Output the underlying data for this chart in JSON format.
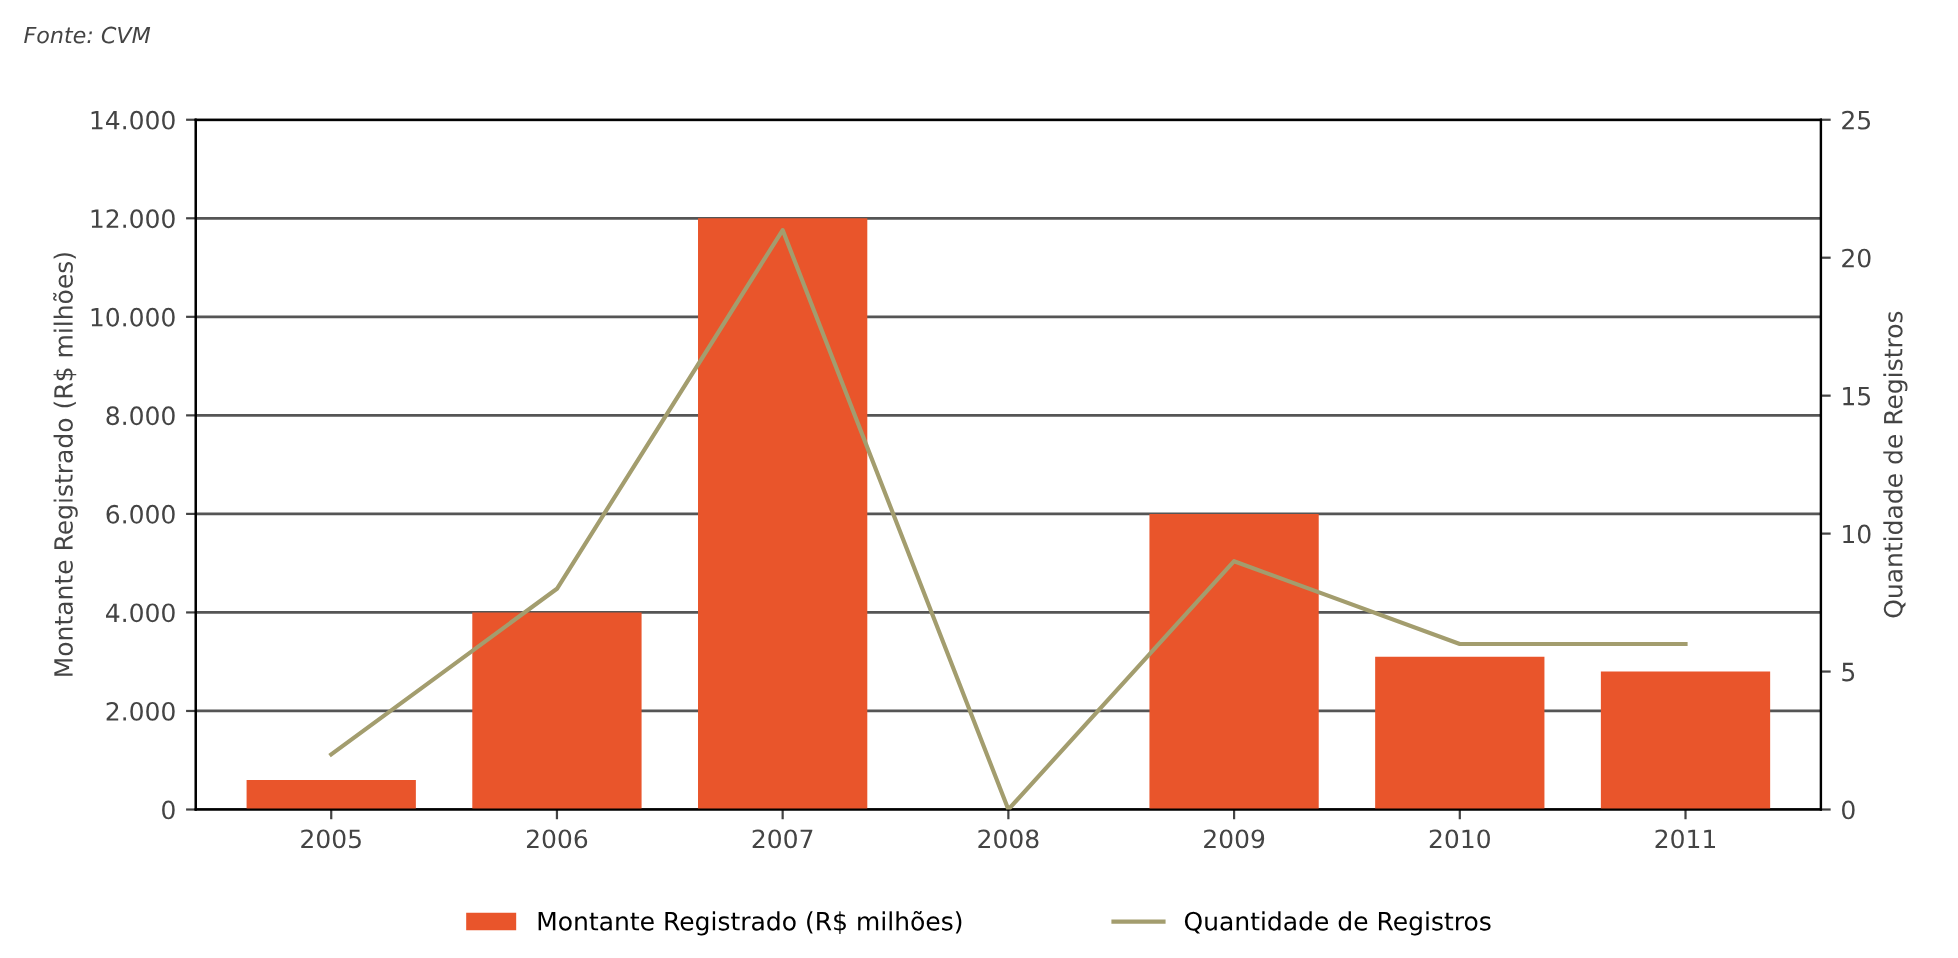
{
  "chart_data": {
    "type": "bar",
    "categories": [
      "2005",
      "2006",
      "2007",
      "2008",
      "2009",
      "2010",
      "2011"
    ],
    "series": [
      {
        "name": "Montante Registrado (R$ milhões)",
        "color": "#e9552b",
        "values": [
          600,
          4000,
          12000,
          0,
          6000,
          3100,
          2800
        ]
      },
      {
        "name": "Quantidade de Registros",
        "type": "line",
        "axis": "y2",
        "color": "#a39d6e",
        "values": [
          2,
          8,
          21,
          0,
          9,
          6,
          6
        ]
      }
    ],
    "ylabel": "Montante Registrado (R$ milhões)",
    "y2label": "Quantidade de Registros",
    "ylim": [
      0,
      14000
    ],
    "yticks": [
      {
        "value": 0,
        "label": "0"
      },
      {
        "value": 2000,
        "label": "2.000"
      },
      {
        "value": 4000,
        "label": "4.000"
      },
      {
        "value": 6000,
        "label": "6.000"
      },
      {
        "value": 8000,
        "label": "8.000"
      },
      {
        "value": 10000,
        "label": "10.000"
      },
      {
        "value": 12000,
        "label": "12.000"
      },
      {
        "value": 14000,
        "label": "14.000"
      }
    ],
    "y2lim": [
      0,
      25
    ],
    "y2ticks": [
      0,
      5,
      10,
      15,
      20,
      25
    ],
    "grid": "y",
    "legend": "bottom",
    "marker": "none",
    "line_style": "solid",
    "annotations": [
      "Fonte: CVM"
    ]
  }
}
